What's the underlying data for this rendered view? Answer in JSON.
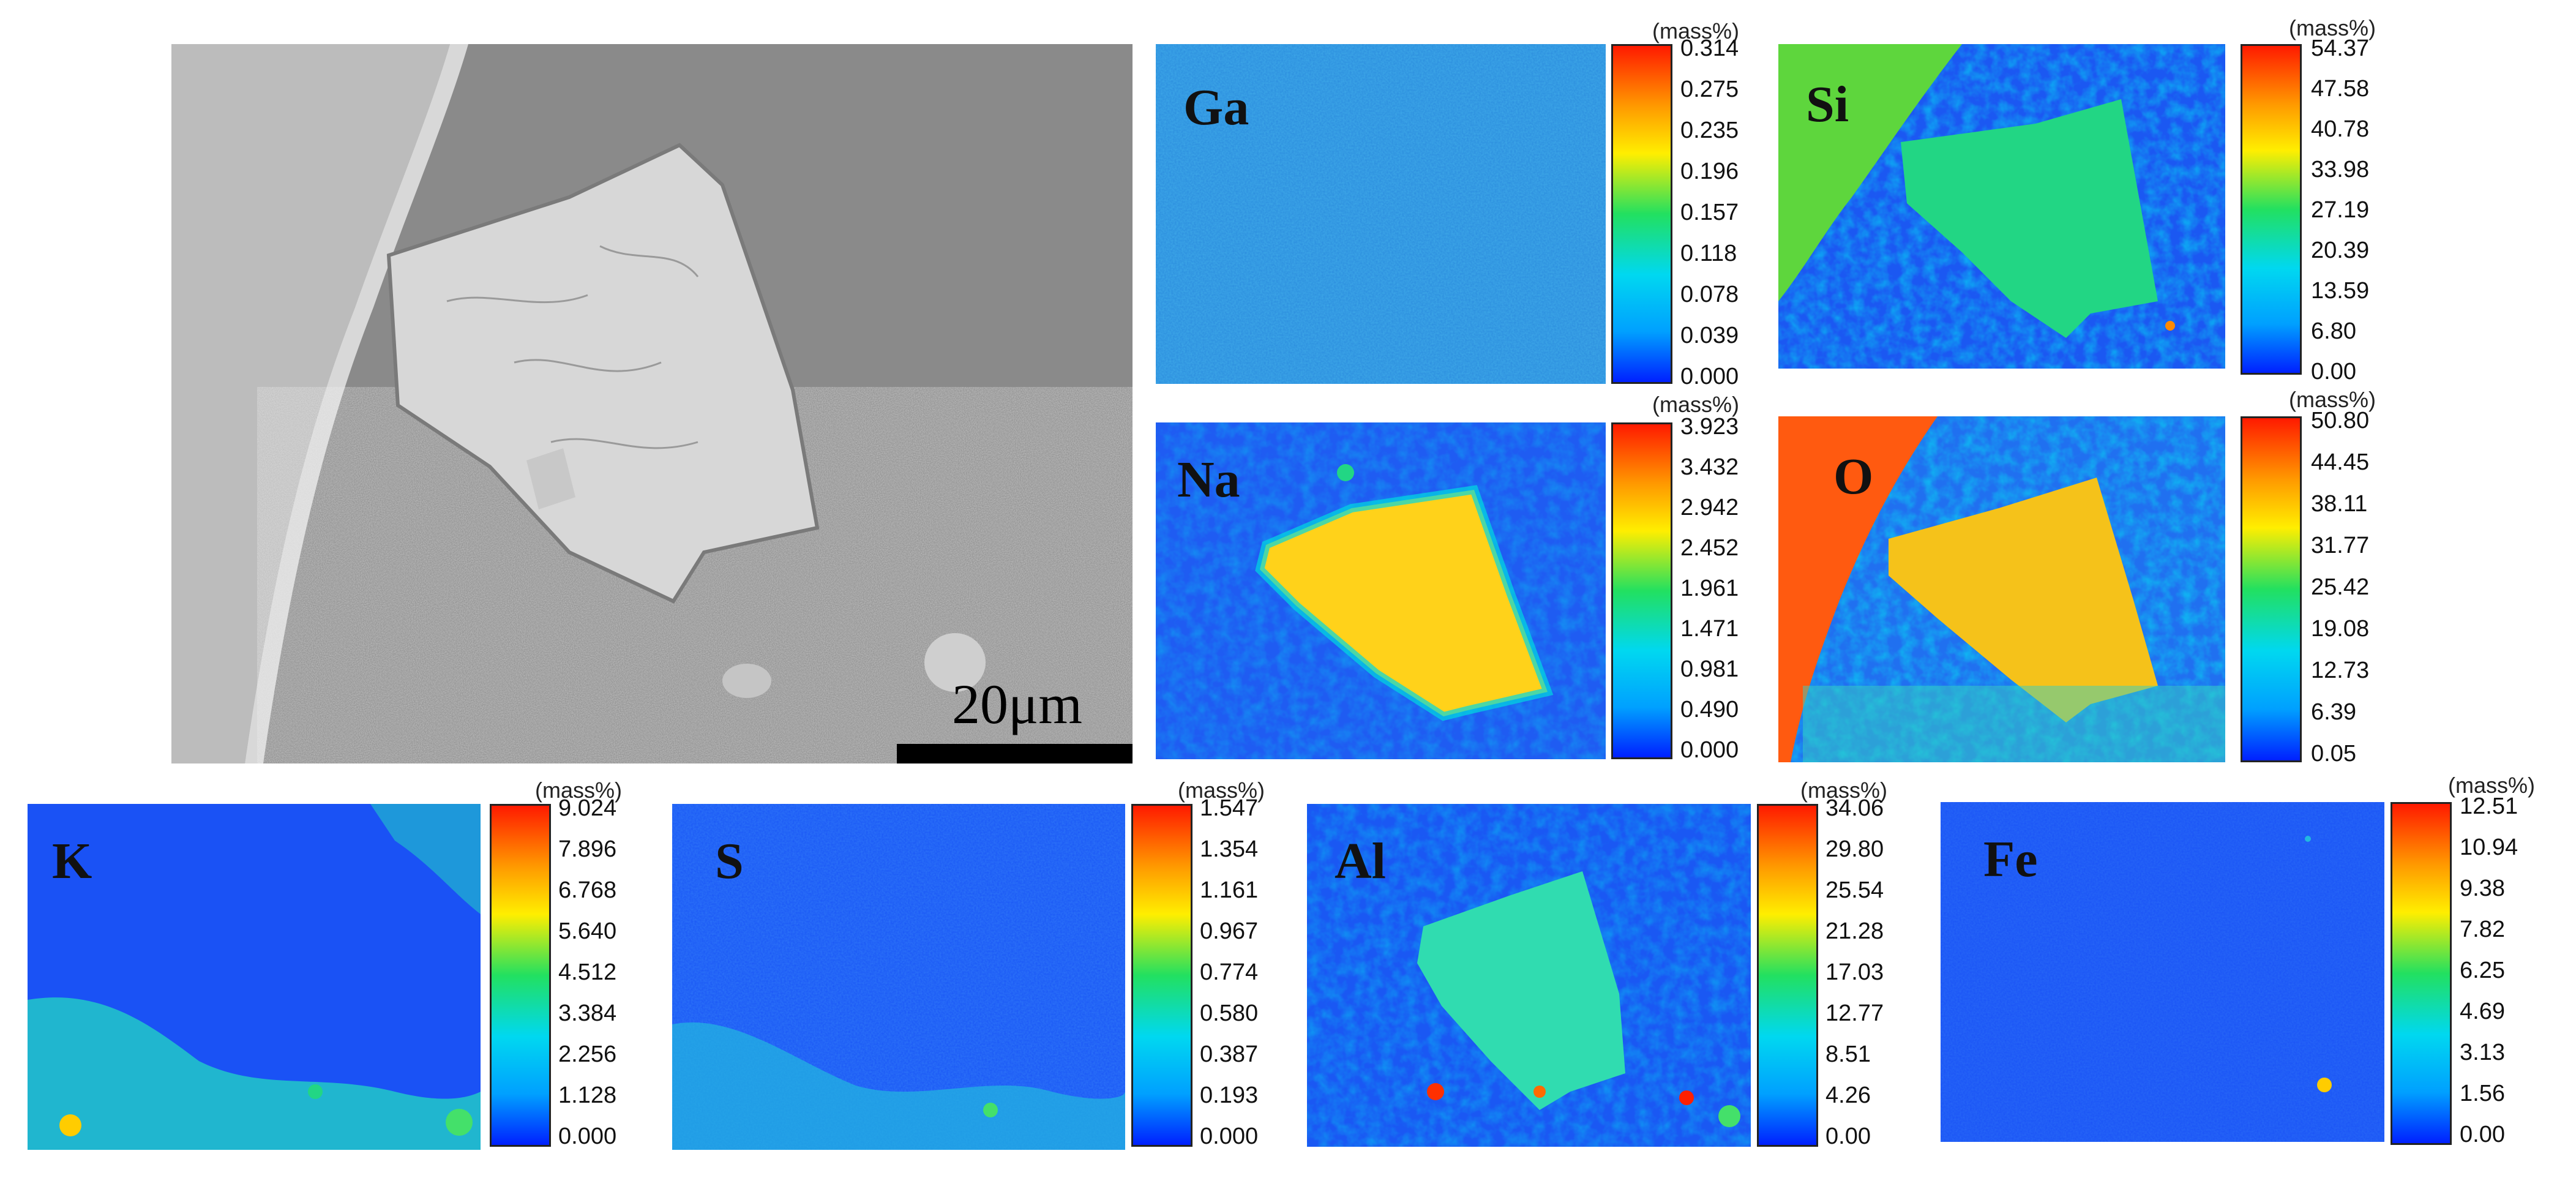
{
  "sem_image": {
    "scale_label": "20μm"
  },
  "colors": {
    "cmap_low": "#0000ff",
    "cmap_mid": "#00ff66",
    "cmap_high": "#ff2000",
    "background_map": "#1a5aff"
  },
  "maps": [
    {
      "element": "Ga",
      "unit": "(mass%)",
      "ticks": [
        "0.314",
        "0.275",
        "0.235",
        "0.196",
        "0.157",
        "0.118",
        "0.078",
        "0.039",
        "0.000"
      ]
    },
    {
      "element": "Si",
      "unit": "(mass%)",
      "ticks": [
        "54.37",
        "47.58",
        "40.78",
        "33.98",
        "27.19",
        "20.39",
        "13.59",
        "6.80",
        "0.00"
      ]
    },
    {
      "element": "Na",
      "unit": "(mass%)",
      "ticks": [
        "3.923",
        "3.432",
        "2.942",
        "2.452",
        "1.961",
        "1.471",
        "0.981",
        "0.490",
        "0.000"
      ]
    },
    {
      "element": "O",
      "unit": "(mass%)",
      "ticks": [
        "50.80",
        "44.45",
        "38.11",
        "31.77",
        "25.42",
        "19.08",
        "12.73",
        "6.39",
        "0.05"
      ]
    },
    {
      "element": "K",
      "unit": "(mass%)",
      "ticks": [
        "9.024",
        "7.896",
        "6.768",
        "5.640",
        "4.512",
        "3.384",
        "2.256",
        "1.128",
        "0.000"
      ]
    },
    {
      "element": "S",
      "unit": "(mass%)",
      "ticks": [
        "1.547",
        "1.354",
        "1.161",
        "0.967",
        "0.774",
        "0.580",
        "0.387",
        "0.193",
        "0.000"
      ]
    },
    {
      "element": "Al",
      "unit": "(mass%)",
      "ticks": [
        "34.06",
        "29.80",
        "25.54",
        "21.28",
        "17.03",
        "12.77",
        "8.51",
        "4.26",
        "0.00"
      ]
    },
    {
      "element": "Fe",
      "unit": "(mass%)",
      "ticks": [
        "12.51",
        "10.94",
        "9.38",
        "7.82",
        "6.25",
        "4.69",
        "3.13",
        "1.56",
        "0.00"
      ]
    }
  ]
}
